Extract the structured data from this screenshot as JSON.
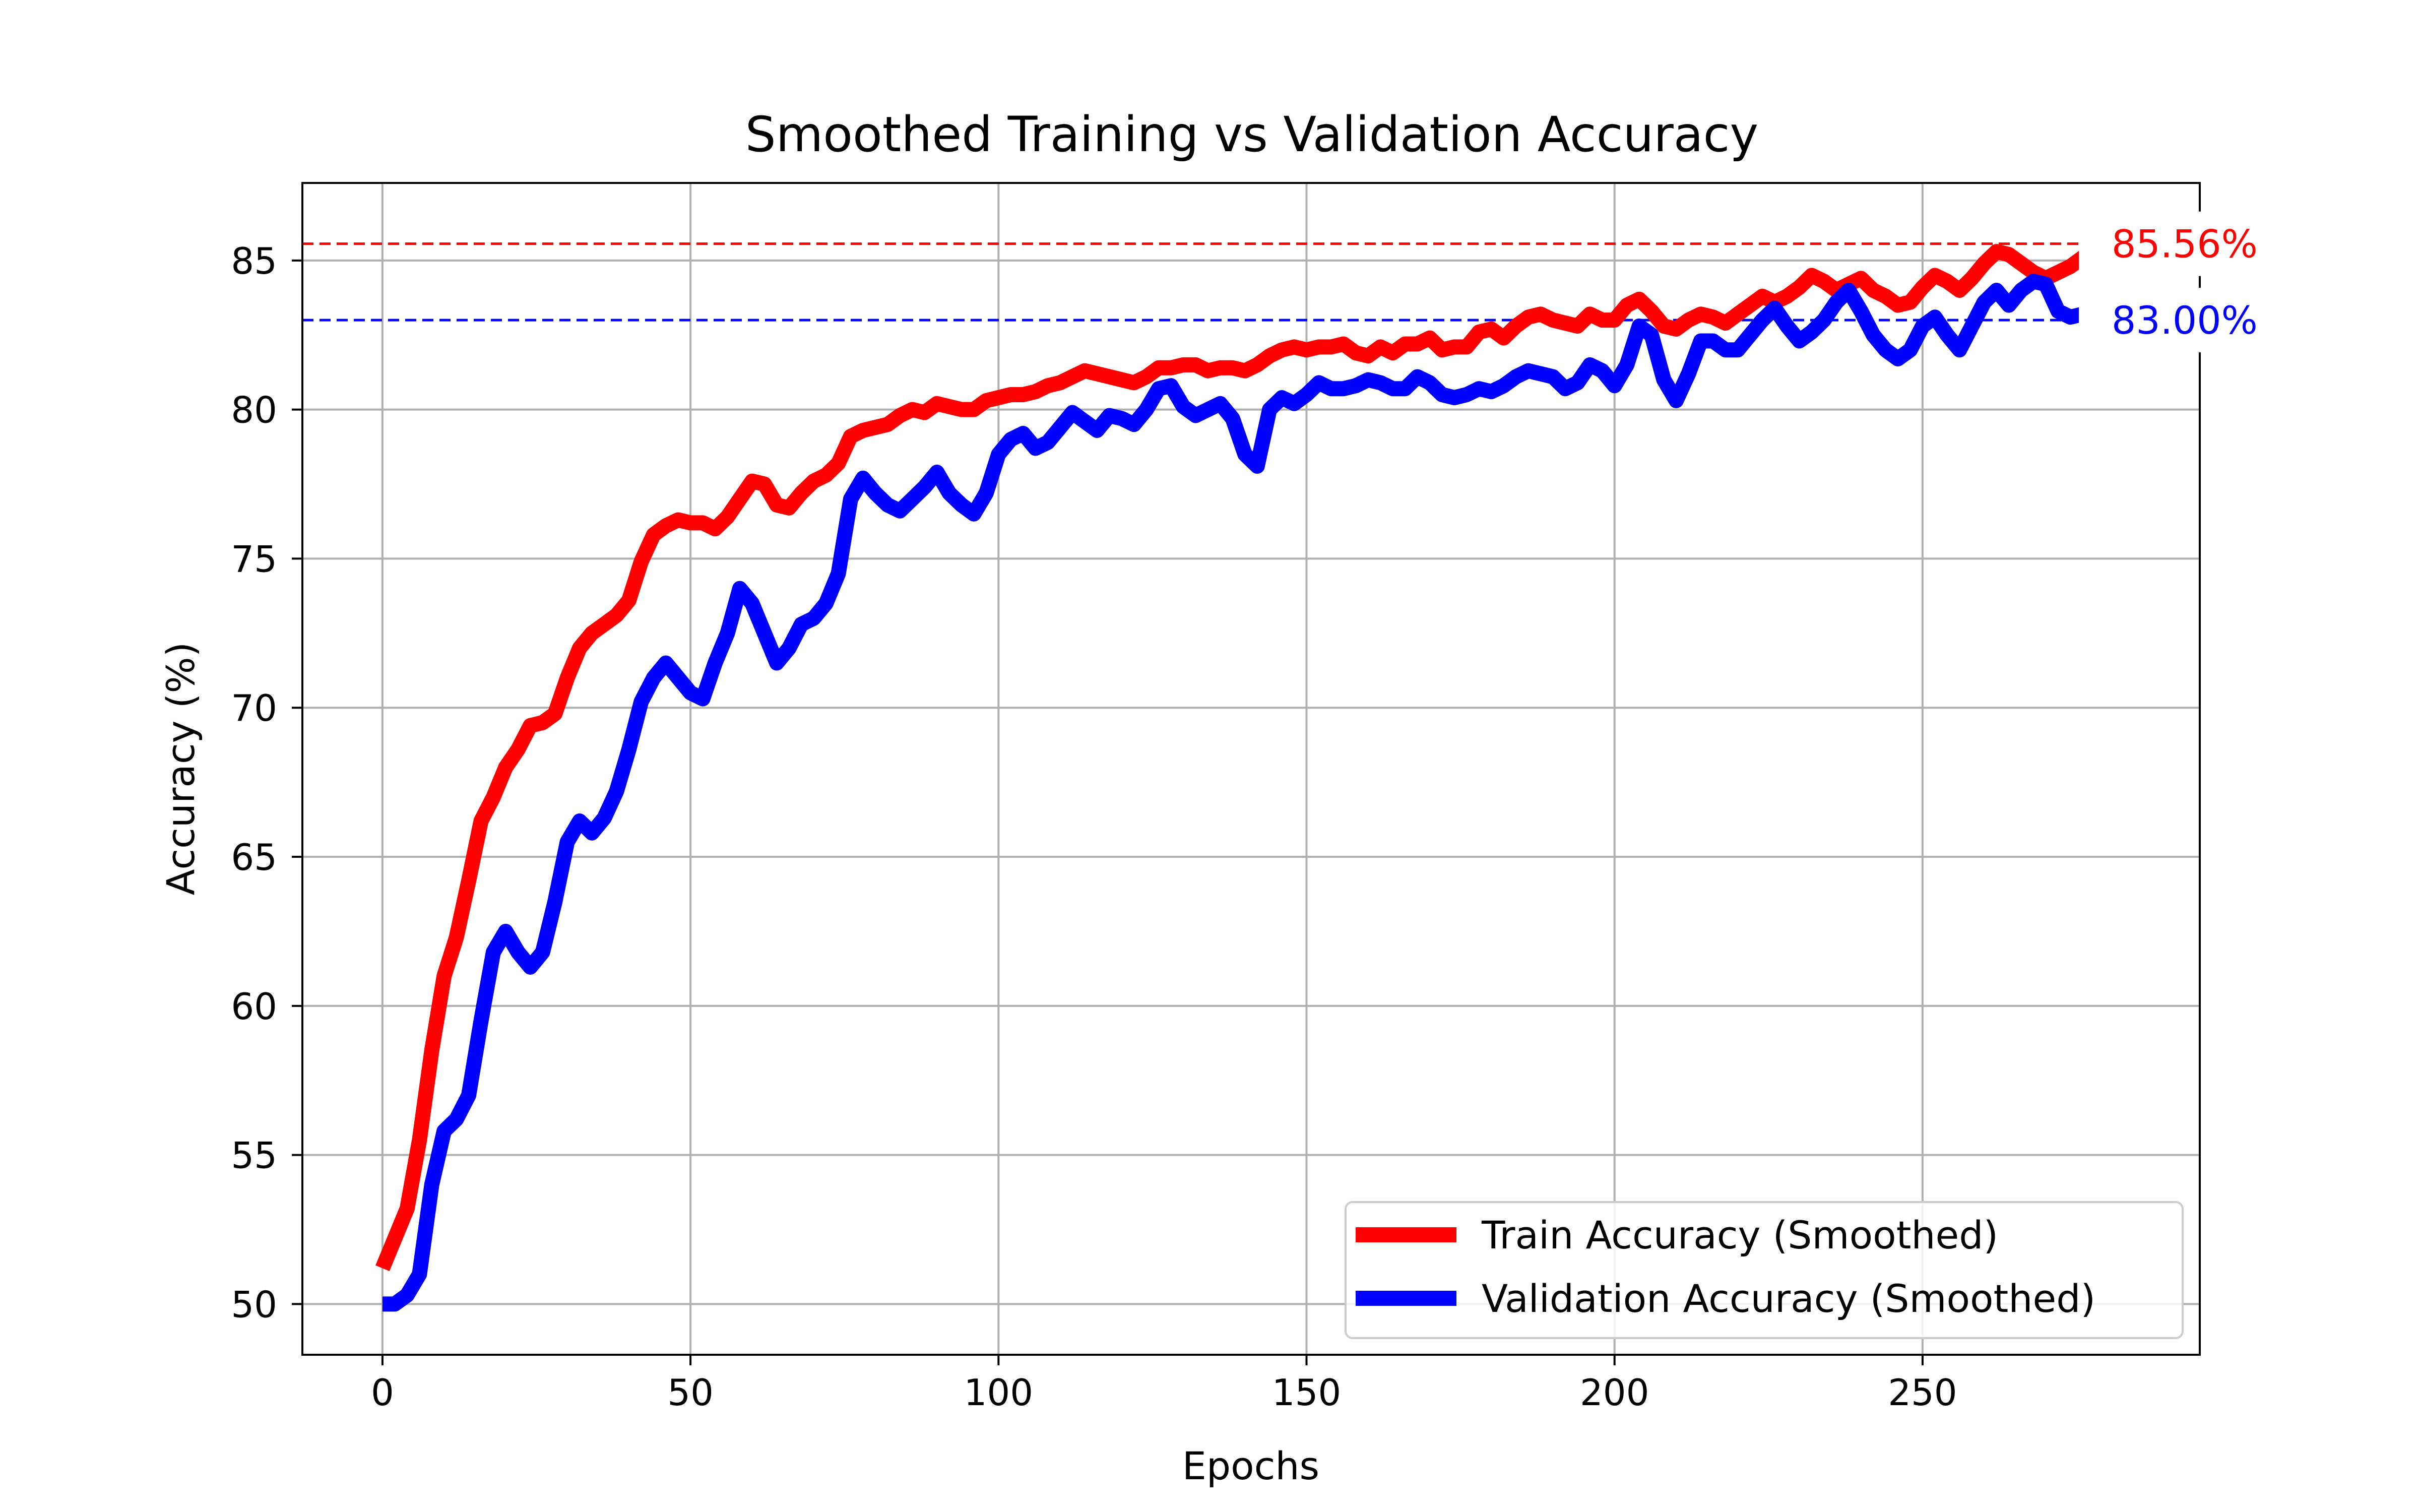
{
  "chart_data": {
    "type": "line",
    "title": "Smoothed Training vs Validation Accuracy",
    "xlabel": "Epochs",
    "ylabel": "Accuracy (%)",
    "xlim": [
      -13,
      295
    ],
    "ylim": [
      48.3,
      87.6
    ],
    "xticks": [
      0,
      50,
      100,
      150,
      200,
      250
    ],
    "xtick_labels": [
      "0",
      "50",
      "100",
      "150",
      "200",
      "250"
    ],
    "yticks": [
      50,
      55,
      60,
      65,
      70,
      75,
      80,
      85
    ],
    "ytick_labels": [
      "50",
      "55",
      "60",
      "65",
      "70",
      "75",
      "80",
      "85"
    ],
    "grid": true,
    "legend_position": "lower-right",
    "series": [
      {
        "name": "Train Accuracy (Smoothed)",
        "color": "#ff0000",
        "points": [
          [
            0,
            51.2
          ],
          [
            2,
            52.2
          ],
          [
            4,
            53.2
          ],
          [
            6,
            55.5
          ],
          [
            8,
            58.5
          ],
          [
            10,
            61.0
          ],
          [
            12,
            62.3
          ],
          [
            14,
            64.2
          ],
          [
            16,
            66.2
          ],
          [
            18,
            67.0
          ],
          [
            20,
            68.0
          ],
          [
            22,
            68.6
          ],
          [
            24,
            69.4
          ],
          [
            26,
            69.5
          ],
          [
            28,
            69.8
          ],
          [
            30,
            71.0
          ],
          [
            32,
            72.0
          ],
          [
            34,
            72.5
          ],
          [
            36,
            72.8
          ],
          [
            38,
            73.1
          ],
          [
            40,
            73.6
          ],
          [
            42,
            74.9
          ],
          [
            44,
            75.8
          ],
          [
            46,
            76.1
          ],
          [
            48,
            76.3
          ],
          [
            50,
            76.2
          ],
          [
            52,
            76.2
          ],
          [
            54,
            76.0
          ],
          [
            56,
            76.4
          ],
          [
            58,
            77.0
          ],
          [
            60,
            77.6
          ],
          [
            62,
            77.5
          ],
          [
            64,
            76.8
          ],
          [
            66,
            76.7
          ],
          [
            68,
            77.2
          ],
          [
            70,
            77.6
          ],
          [
            72,
            77.8
          ],
          [
            74,
            78.2
          ],
          [
            76,
            79.1
          ],
          [
            78,
            79.3
          ],
          [
            80,
            79.4
          ],
          [
            82,
            79.5
          ],
          [
            84,
            79.8
          ],
          [
            86,
            80.0
          ],
          [
            88,
            79.9
          ],
          [
            90,
            80.2
          ],
          [
            92,
            80.1
          ],
          [
            94,
            80.0
          ],
          [
            96,
            80.0
          ],
          [
            98,
            80.3
          ],
          [
            100,
            80.4
          ],
          [
            102,
            80.5
          ],
          [
            104,
            80.5
          ],
          [
            106,
            80.6
          ],
          [
            108,
            80.8
          ],
          [
            110,
            80.9
          ],
          [
            112,
            81.1
          ],
          [
            114,
            81.3
          ],
          [
            116,
            81.2
          ],
          [
            118,
            81.1
          ],
          [
            120,
            81.0
          ],
          [
            122,
            80.9
          ],
          [
            124,
            81.1
          ],
          [
            126,
            81.4
          ],
          [
            128,
            81.4
          ],
          [
            130,
            81.5
          ],
          [
            132,
            81.5
          ],
          [
            134,
            81.3
          ],
          [
            136,
            81.4
          ],
          [
            138,
            81.4
          ],
          [
            140,
            81.3
          ],
          [
            142,
            81.5
          ],
          [
            144,
            81.8
          ],
          [
            146,
            82.0
          ],
          [
            148,
            82.1
          ],
          [
            150,
            82.0
          ],
          [
            152,
            82.1
          ],
          [
            154,
            82.1
          ],
          [
            156,
            82.2
          ],
          [
            158,
            81.9
          ],
          [
            160,
            81.8
          ],
          [
            162,
            82.1
          ],
          [
            164,
            81.9
          ],
          [
            166,
            82.2
          ],
          [
            168,
            82.2
          ],
          [
            170,
            82.4
          ],
          [
            172,
            82.0
          ],
          [
            174,
            82.1
          ],
          [
            176,
            82.1
          ],
          [
            178,
            82.6
          ],
          [
            180,
            82.7
          ],
          [
            182,
            82.4
          ],
          [
            184,
            82.8
          ],
          [
            186,
            83.1
          ],
          [
            188,
            83.2
          ],
          [
            190,
            83.0
          ],
          [
            192,
            82.9
          ],
          [
            194,
            82.8
          ],
          [
            196,
            83.2
          ],
          [
            198,
            83.0
          ],
          [
            200,
            83.0
          ],
          [
            202,
            83.5
          ],
          [
            204,
            83.7
          ],
          [
            206,
            83.3
          ],
          [
            208,
            82.8
          ],
          [
            210,
            82.7
          ],
          [
            212,
            83.0
          ],
          [
            214,
            83.2
          ],
          [
            216,
            83.1
          ],
          [
            218,
            82.9
          ],
          [
            220,
            83.2
          ],
          [
            222,
            83.5
          ],
          [
            224,
            83.8
          ],
          [
            226,
            83.6
          ],
          [
            228,
            83.8
          ],
          [
            230,
            84.1
          ],
          [
            232,
            84.5
          ],
          [
            234,
            84.3
          ],
          [
            236,
            84.0
          ],
          [
            238,
            84.2
          ],
          [
            240,
            84.4
          ],
          [
            242,
            84.0
          ],
          [
            244,
            83.8
          ],
          [
            246,
            83.5
          ],
          [
            248,
            83.6
          ],
          [
            250,
            84.1
          ],
          [
            252,
            84.5
          ],
          [
            254,
            84.3
          ],
          [
            256,
            84.0
          ],
          [
            258,
            84.4
          ],
          [
            260,
            84.9
          ],
          [
            262,
            85.3
          ],
          [
            264,
            85.2
          ],
          [
            266,
            84.9
          ],
          [
            268,
            84.6
          ],
          [
            270,
            84.4
          ],
          [
            272,
            84.6
          ],
          [
            274,
            84.8
          ],
          [
            276,
            85.1
          ],
          [
            278,
            85.5
          ],
          [
            280,
            85.8
          ]
        ]
      },
      {
        "name": "Validation Accuracy (Smoothed)",
        "color": "#0000ff",
        "points": [
          [
            0,
            50.0
          ],
          [
            2,
            50.0
          ],
          [
            4,
            50.3
          ],
          [
            6,
            51.0
          ],
          [
            8,
            54.0
          ],
          [
            10,
            55.8
          ],
          [
            12,
            56.2
          ],
          [
            14,
            57.0
          ],
          [
            16,
            59.5
          ],
          [
            18,
            61.8
          ],
          [
            20,
            62.5
          ],
          [
            22,
            61.8
          ],
          [
            24,
            61.3
          ],
          [
            26,
            61.8
          ],
          [
            28,
            63.5
          ],
          [
            30,
            65.5
          ],
          [
            32,
            66.2
          ],
          [
            34,
            65.8
          ],
          [
            36,
            66.3
          ],
          [
            38,
            67.2
          ],
          [
            40,
            68.6
          ],
          [
            42,
            70.2
          ],
          [
            44,
            71.0
          ],
          [
            46,
            71.5
          ],
          [
            48,
            71.0
          ],
          [
            50,
            70.5
          ],
          [
            52,
            70.3
          ],
          [
            54,
            71.5
          ],
          [
            56,
            72.5
          ],
          [
            58,
            74.0
          ],
          [
            60,
            73.5
          ],
          [
            62,
            72.5
          ],
          [
            64,
            71.5
          ],
          [
            66,
            72.0
          ],
          [
            68,
            72.8
          ],
          [
            70,
            73.0
          ],
          [
            72,
            73.5
          ],
          [
            74,
            74.5
          ],
          [
            76,
            77.0
          ],
          [
            78,
            77.7
          ],
          [
            80,
            77.2
          ],
          [
            82,
            76.8
          ],
          [
            84,
            76.6
          ],
          [
            86,
            77.0
          ],
          [
            88,
            77.4
          ],
          [
            90,
            77.9
          ],
          [
            92,
            77.2
          ],
          [
            94,
            76.8
          ],
          [
            96,
            76.5
          ],
          [
            98,
            77.2
          ],
          [
            100,
            78.5
          ],
          [
            102,
            79.0
          ],
          [
            104,
            79.2
          ],
          [
            106,
            78.7
          ],
          [
            108,
            78.9
          ],
          [
            110,
            79.4
          ],
          [
            112,
            79.9
          ],
          [
            114,
            79.6
          ],
          [
            116,
            79.3
          ],
          [
            118,
            79.8
          ],
          [
            120,
            79.7
          ],
          [
            122,
            79.5
          ],
          [
            124,
            80.0
          ],
          [
            126,
            80.7
          ],
          [
            128,
            80.8
          ],
          [
            130,
            80.1
          ],
          [
            132,
            79.8
          ],
          [
            134,
            80.0
          ],
          [
            136,
            80.2
          ],
          [
            138,
            79.7
          ],
          [
            140,
            78.5
          ],
          [
            142,
            78.1
          ],
          [
            144,
            80.0
          ],
          [
            146,
            80.4
          ],
          [
            148,
            80.2
          ],
          [
            150,
            80.5
          ],
          [
            152,
            80.9
          ],
          [
            154,
            80.7
          ],
          [
            156,
            80.7
          ],
          [
            158,
            80.8
          ],
          [
            160,
            81.0
          ],
          [
            162,
            80.9
          ],
          [
            164,
            80.7
          ],
          [
            166,
            80.7
          ],
          [
            168,
            81.1
          ],
          [
            170,
            80.9
          ],
          [
            172,
            80.5
          ],
          [
            174,
            80.4
          ],
          [
            176,
            80.5
          ],
          [
            178,
            80.7
          ],
          [
            180,
            80.6
          ],
          [
            182,
            80.8
          ],
          [
            184,
            81.1
          ],
          [
            186,
            81.3
          ],
          [
            188,
            81.2
          ],
          [
            190,
            81.1
          ],
          [
            192,
            80.7
          ],
          [
            194,
            80.9
          ],
          [
            196,
            81.5
          ],
          [
            198,
            81.3
          ],
          [
            200,
            80.8
          ],
          [
            202,
            81.5
          ],
          [
            204,
            82.8
          ],
          [
            206,
            82.5
          ],
          [
            208,
            81.0
          ],
          [
            210,
            80.3
          ],
          [
            212,
            81.2
          ],
          [
            214,
            82.3
          ],
          [
            216,
            82.3
          ],
          [
            218,
            82.0
          ],
          [
            220,
            82.0
          ],
          [
            222,
            82.5
          ],
          [
            224,
            83.0
          ],
          [
            226,
            83.4
          ],
          [
            228,
            82.8
          ],
          [
            230,
            82.3
          ],
          [
            232,
            82.6
          ],
          [
            234,
            83.0
          ],
          [
            236,
            83.6
          ],
          [
            238,
            84.0
          ],
          [
            240,
            83.3
          ],
          [
            242,
            82.5
          ],
          [
            244,
            82.0
          ],
          [
            246,
            81.7
          ],
          [
            248,
            82.0
          ],
          [
            250,
            82.8
          ],
          [
            252,
            83.1
          ],
          [
            254,
            82.5
          ],
          [
            256,
            82.0
          ],
          [
            258,
            82.8
          ],
          [
            260,
            83.6
          ],
          [
            262,
            84.0
          ],
          [
            264,
            83.5
          ],
          [
            266,
            84.0
          ],
          [
            268,
            84.3
          ],
          [
            270,
            84.2
          ],
          [
            272,
            83.3
          ],
          [
            274,
            83.1
          ],
          [
            276,
            83.2
          ],
          [
            278,
            83.0
          ],
          [
            280,
            83.1
          ]
        ]
      }
    ],
    "reference_lines": [
      {
        "name": "train-final",
        "y": 85.56,
        "label": "85.56%",
        "color": "#ff0000"
      },
      {
        "name": "validation-final",
        "y": 83.0,
        "label": "83.00%",
        "color": "#0000ff"
      }
    ]
  }
}
